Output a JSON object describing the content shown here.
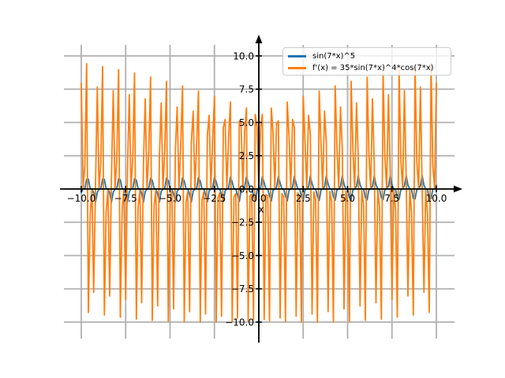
{
  "chart_data": {
    "type": "line",
    "title": "",
    "xlabel": "x",
    "ylabel": "",
    "x_range": [
      -10,
      10
    ],
    "num_points": 200,
    "xlim": [
      -11,
      11
    ],
    "ylim": [
      -11.2,
      10.9
    ],
    "x_ticks": [
      -10,
      -7.5,
      -5,
      -2.5,
      0,
      2.5,
      5,
      7.5,
      10
    ],
    "x_tick_labels": [
      "−10.0",
      "−7.5",
      "−5.0",
      "−2.5",
      "0.0",
      "2.5",
      "5.0",
      "7.5",
      "10.0"
    ],
    "y_ticks": [
      -10,
      -7.5,
      -5,
      -2.5,
      0,
      2.5,
      5,
      7.5,
      10
    ],
    "y_tick_labels": [
      "−10.0",
      "−7.5",
      "−5.0",
      "−2.5",
      "0.0",
      "2.5",
      "5.0",
      "7.5",
      "10.0"
    ],
    "grid": true,
    "grid_color": "#b0b0b0",
    "axis_color": "#000000",
    "background": "#ffffff",
    "legend_position": "upper right",
    "series": [
      {
        "label": "sin(7*x)^5",
        "expression": "sin(7*x)^5",
        "color": "#1f77b4",
        "line_width": 1.8
      },
      {
        "label": "f'(x) = 35*sin(7*x)^4*cos(7*x)",
        "expression": "35*sin(7*x)^4*cos(7*x)",
        "color": "#ff7f0e",
        "line_width": 1.8
      }
    ]
  }
}
